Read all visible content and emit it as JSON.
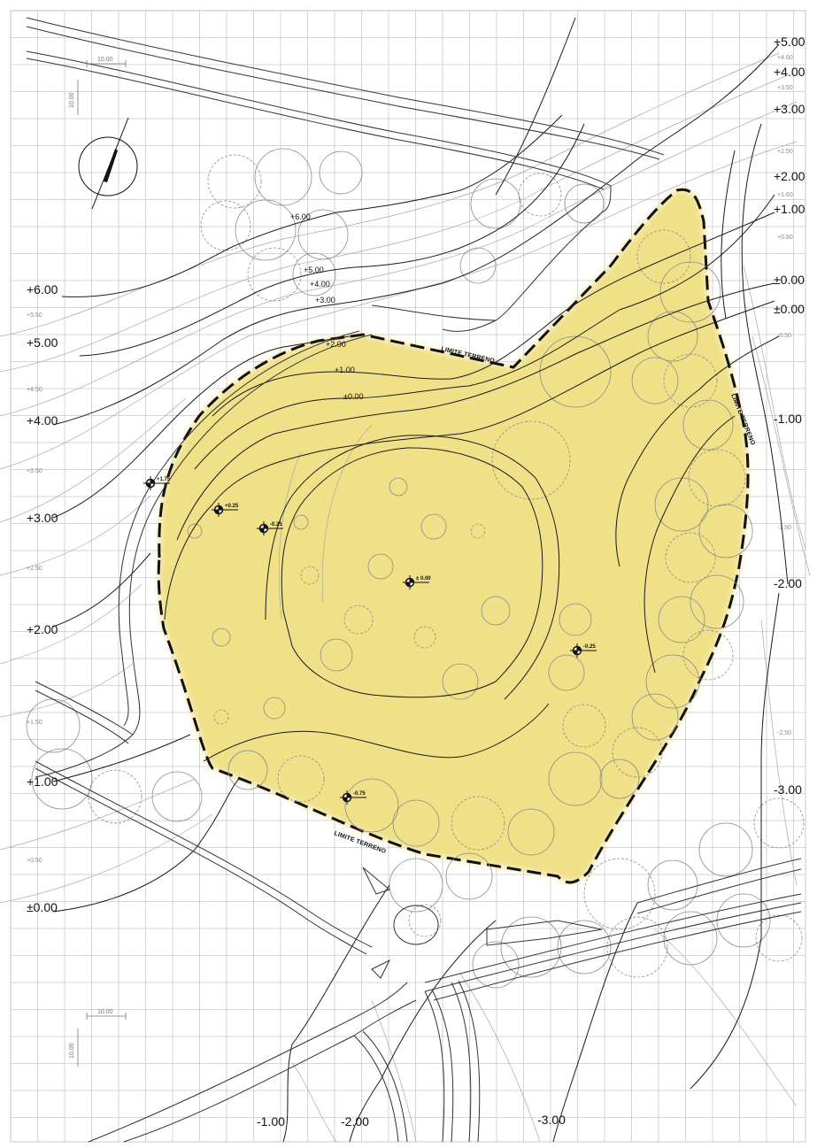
{
  "map": {
    "plot_fill": "#f0e087",
    "boundary_label": "LIMITE TERRENO",
    "left_contours": [
      {
        "big": "+6.00",
        "small": "+5.50"
      },
      {
        "big": "+5.00",
        "small": "+4.50"
      },
      {
        "big": "+4.00",
        "small": "+3.50"
      },
      {
        "big": "+3.00",
        "small": "+2.50"
      },
      {
        "big": "+2.00",
        "small": "+1.50"
      },
      {
        "big": "+1.00",
        "small": "+0.50"
      },
      {
        "big": "±0.00",
        "small": ""
      }
    ],
    "right_contours": {
      "big": [
        "+5.00",
        "+4.00",
        "+3.00",
        "+2.00",
        "+1.00",
        "±0.00",
        "±0.00",
        "-1.00",
        "-2.00",
        "-3.00"
      ],
      "small": [
        "+4.60",
        "+3.50",
        "+2.50",
        "+1.60",
        "+0.80",
        "-0.50",
        "-1.50",
        "-2.50"
      ]
    },
    "bottom_contours": [
      "-1.00",
      "-2.00",
      "-3.00"
    ],
    "inner_contours": [
      "+6.00",
      "+5.00",
      "+4.00",
      "+3.00",
      "+2.00",
      "+1.00",
      "±0.00"
    ],
    "spot_levels": [
      "+1.75",
      "+0.25",
      "-0.25",
      "± 0.00",
      "-0.25",
      "-0.75"
    ],
    "grid_dimension": "10.00"
  }
}
